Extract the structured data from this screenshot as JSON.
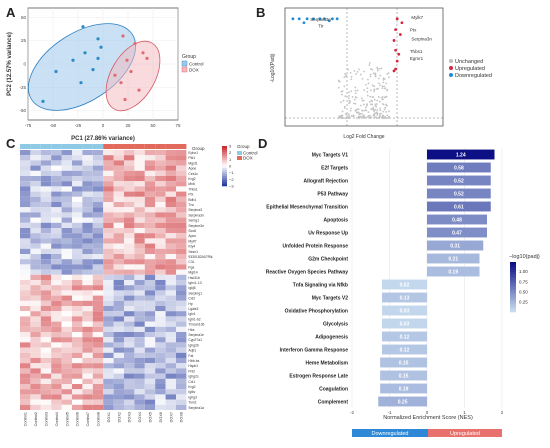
{
  "panels": {
    "a": "A",
    "b": "B",
    "c": "C",
    "d": "D"
  },
  "colors": {
    "control": "#5b9bd5",
    "dox": "#e8878c",
    "up": "#d7263d",
    "down": "#1f8dd6",
    "unchanged": "#bdbdbd",
    "nes_dark": "#0d0f85",
    "nes_light": "#c6dbef"
  },
  "chart_data": [
    {
      "id": "A",
      "type": "scatter",
      "xlabel": "PC1 (27.86% variance)",
      "ylabel": "PC2 (12.57% variance)",
      "xlim": [
        -75,
        75
      ],
      "ylim": [
        -60,
        60
      ],
      "xticks": [
        -75,
        -50,
        -25,
        0,
        25,
        50,
        75
      ],
      "yticks": [
        -50,
        -25,
        0,
        25,
        50
      ],
      "legend_title": "Group",
      "legend_position": "right",
      "series": [
        {
          "name": "Control",
          "color": "#2b8cc4",
          "points": [
            [
              -47,
              -8
            ],
            [
              -30,
              4
            ],
            [
              -22,
              -20
            ],
            [
              -18,
              12
            ],
            [
              -5,
              27
            ],
            [
              -2,
              18
            ],
            [
              -5,
              6
            ],
            [
              -10,
              -6
            ],
            [
              -60,
              -40
            ],
            [
              -20,
              40
            ]
          ]
        },
        {
          "name": "DOX",
          "color": "#e06b75",
          "points": [
            [
              20,
              30
            ],
            [
              32,
              22
            ],
            [
              44,
              6
            ],
            [
              24,
              4
            ],
            [
              12,
              -12
            ],
            [
              18,
              -20
            ],
            [
              28,
              -8
            ],
            [
              36,
              -28
            ],
            [
              22,
              -38
            ],
            [
              40,
              12
            ]
          ]
        }
      ]
    },
    {
      "id": "B",
      "type": "scatter",
      "xlabel": "Log2 Fold Change",
      "ylabel": "-Log10(Padj)",
      "legend": [
        "Unchanged",
        "Upregulated",
        "Downregulated"
      ],
      "legend_position": "right",
      "labels": [
        {
          "text": "Serpina3n",
          "x": -3.4,
          "y": 9.7
        },
        {
          "text": "Ttr",
          "x": -2.9,
          "y": 9.0
        },
        {
          "text": "Mylk7",
          "x": 3.0,
          "y": 9.9
        },
        {
          "text": "Ptx",
          "x": 2.9,
          "y": 8.6
        },
        {
          "text": "Serpina3n",
          "x": 3.0,
          "y": 7.7
        },
        {
          "text": "Thbs1",
          "x": 2.9,
          "y": 6.4
        },
        {
          "text": "Egmr1",
          "x": 2.9,
          "y": 5.7
        }
      ]
    },
    {
      "id": "C",
      "type": "heatmap",
      "columns": [
        "Control1",
        "Control2",
        "Control3",
        "Control4",
        "Control5",
        "Control6",
        "Control7",
        "Control8",
        "DOX1",
        "DOX2",
        "DOX3",
        "DOX4",
        "DOX5",
        "DOX6",
        "DOX7",
        "DOX8"
      ],
      "groups": [
        "Control",
        "Control",
        "Control",
        "Control",
        "Control",
        "Control",
        "Control",
        "Control",
        "DOX",
        "DOX",
        "DOX",
        "DOX",
        "DOX",
        "DOX",
        "DOX",
        "DOX"
      ],
      "rows": [
        "Ephx1",
        "Ptk1",
        "Mgst1",
        "Apoe",
        "Ces1c",
        "Krg2",
        "Mrdi",
        "Thbs1",
        "Ptx",
        "Bdh1",
        "Tnc",
        "Serpina3",
        "Serpina3n",
        "Semg1",
        "Serpine3n",
        "Sco6",
        "Apcn",
        "Mylf7",
        "Kty4",
        "Sesn1",
        "9330182A07Rik",
        "C3L",
        "Fga",
        "Mgl14",
        "Hsd11b",
        "Ighv1-13",
        "Igkj5",
        "Serping1",
        "Cxl2",
        "Hp",
        "Lgals3",
        "Iglv1",
        "Ighi1-62",
        "Tmsan136",
        "Hbs",
        "Serpina1e",
        "Cyp27a1",
        "Ighg2b",
        "Aqtl1",
        "Fat",
        "Hbb-bs",
        "Hspb1",
        "Fhl2",
        "Ighg2c",
        "Cxl1",
        "Krg2",
        "Iglkv",
        "Ighg3",
        "Tom1",
        "Serpina1a"
      ],
      "legend_title": "Group",
      "legend": [
        "Control",
        "DOX"
      ],
      "scale": [
        -3,
        3
      ],
      "scale_ticks": [
        "3",
        "2",
        "1",
        "0",
        "−1",
        "−2",
        "−3"
      ]
    },
    {
      "id": "D",
      "type": "bar",
      "orientation": "horizontal",
      "xlabel": "Normalized Enrichment Score (NES)",
      "xlim": [
        -2,
        2
      ],
      "xticks": [
        -2,
        -1,
        0,
        1,
        2
      ],
      "legend_title": "−log10(padj)",
      "scale": [
        0.25,
        1.0
      ],
      "scale_ticks": [
        "1.00",
        "0.75",
        "0.50",
        "0.25"
      ],
      "footer": [
        "Downregulated",
        "Upregulated"
      ],
      "categories": [
        "Myc Targets V1",
        "E2f Targets",
        "Allograft Rejection",
        "P53 Pathway",
        "Epithelial Mesenchymal Transition",
        "Apoptosis",
        "Uv Response Up",
        "Unfolded Protein Response",
        "G2m Checkpoint",
        "Reactive Oxygen Species Pathway",
        "Tnfa Signaling via Nfkb",
        "Myc Targets V2",
        "Oxidative Phosphorylation",
        "Glycolysis",
        "Adipogenesis",
        "Interferon Gamma Response",
        "Heme Metabolism",
        "Estrogen Response Late",
        "Coagulation",
        "Complement"
      ],
      "values": [
        1.24,
        0.58,
        0.52,
        0.52,
        0.61,
        0.48,
        0.47,
        0.31,
        0.21,
        0.19,
        0.02,
        0.13,
        0.03,
        0.03,
        0.12,
        0.12,
        0.15,
        0.15,
        0.19,
        0.25
      ],
      "value_labels": [
        "1.24",
        "0.58",
        "0.52",
        "0.52",
        "0.61",
        "0.48",
        "0.47",
        "0.31",
        "0.21",
        "0.19",
        "0.02",
        "0.13",
        "0.03",
        "0.03",
        "0.12",
        "0.12",
        "0.15",
        "0.15",
        "0.19",
        "0.25"
      ],
      "nes": [
        1.8,
        1.7,
        1.7,
        1.7,
        1.7,
        1.6,
        1.6,
        1.5,
        1.4,
        1.4,
        -1.2,
        -1.2,
        -1.2,
        -1.2,
        -1.2,
        -1.2,
        -1.25,
        -1.25,
        -1.25,
        -1.3
      ]
    }
  ]
}
